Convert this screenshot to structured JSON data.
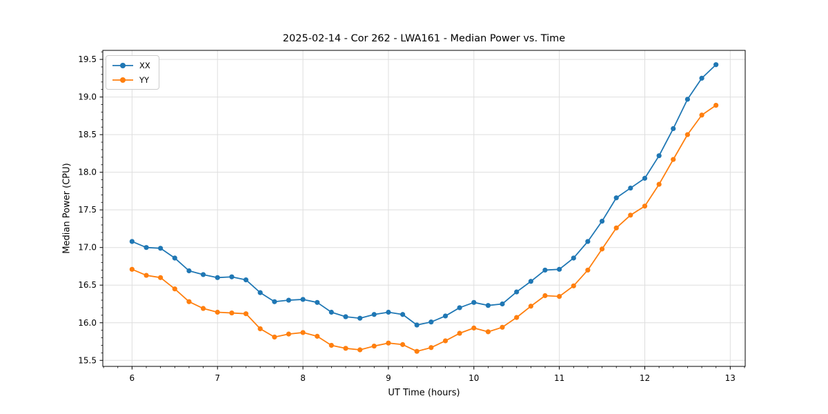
{
  "chart_data": {
    "type": "line",
    "title": "2025-02-14 - Cor 262 - LWA161 - Median Power vs. Time",
    "xlabel": "UT Time (hours)",
    "ylabel": "Median Power (CPU)",
    "xlim": [
      5.658,
      13.175
    ],
    "ylim": [
      15.42,
      19.62
    ],
    "xticks": [
      6,
      7,
      8,
      9,
      10,
      11,
      12,
      13
    ],
    "yticks": [
      15.5,
      16.0,
      16.5,
      17.0,
      17.5,
      18.0,
      18.5,
      19.0,
      19.5
    ],
    "x_minor_step": 0.16667,
    "y_minor_step": 0.1,
    "grid": true,
    "grid_color": "#dedede",
    "legend_position": "upper left",
    "x": [
      6.0,
      6.167,
      6.333,
      6.5,
      6.667,
      6.833,
      7.0,
      7.167,
      7.333,
      7.5,
      7.667,
      7.833,
      8.0,
      8.167,
      8.333,
      8.5,
      8.667,
      8.833,
      9.0,
      9.167,
      9.333,
      9.5,
      9.667,
      9.833,
      10.0,
      10.167,
      10.333,
      10.5,
      10.667,
      10.833,
      11.0,
      11.167,
      11.333,
      11.5,
      11.667,
      11.833,
      12.0,
      12.167,
      12.333,
      12.5,
      12.667,
      12.833
    ],
    "series": [
      {
        "name": "XX",
        "color": "#1f77b4",
        "marker": "circle",
        "values": [
          17.08,
          17.0,
          16.99,
          16.86,
          16.69,
          16.64,
          16.6,
          16.61,
          16.57,
          16.4,
          16.28,
          16.3,
          16.31,
          16.27,
          16.14,
          16.08,
          16.06,
          16.11,
          16.14,
          16.11,
          15.97,
          16.01,
          16.09,
          16.2,
          16.27,
          16.23,
          16.25,
          16.41,
          16.55,
          16.7,
          16.71,
          16.86,
          17.08,
          17.35,
          17.66,
          17.79,
          17.92,
          18.22,
          18.58,
          18.97,
          19.25,
          19.43
        ]
      },
      {
        "name": "YY",
        "color": "#ff7f0e",
        "marker": "circle",
        "values": [
          16.71,
          16.63,
          16.6,
          16.45,
          16.28,
          16.19,
          16.14,
          16.13,
          16.12,
          15.92,
          15.81,
          15.85,
          15.87,
          15.82,
          15.7,
          15.66,
          15.64,
          15.69,
          15.73,
          15.71,
          15.62,
          15.67,
          15.76,
          15.86,
          15.93,
          15.88,
          15.94,
          16.07,
          16.22,
          16.36,
          16.35,
          16.49,
          16.7,
          16.98,
          17.26,
          17.43,
          17.55,
          17.84,
          18.17,
          18.5,
          18.76,
          18.89
        ]
      }
    ]
  }
}
